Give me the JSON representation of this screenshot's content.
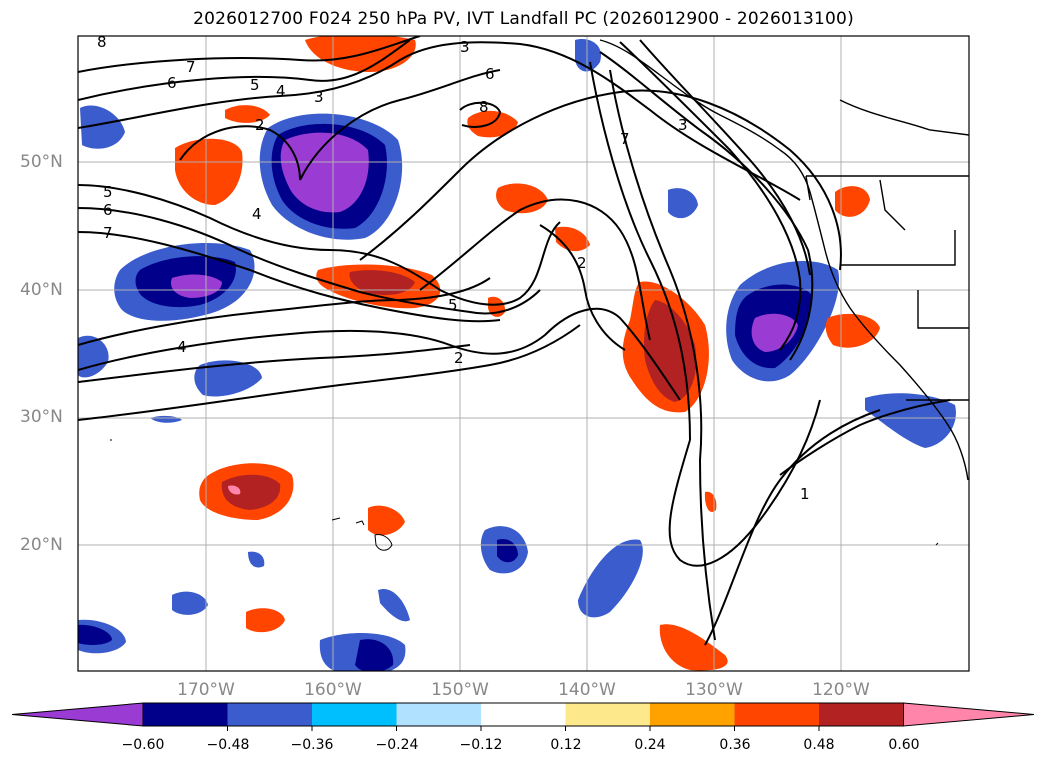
{
  "title": "2026012700 F024 250 hPa PV, IVT Landfall PC (2026012900 - 2026013100)",
  "lat_labels": [
    "50°N",
    "40°N",
    "30°N",
    "20°N"
  ],
  "lon_labels": [
    "170°W",
    "160°W",
    "150°W",
    "140°W",
    "130°W",
    "120°W"
  ],
  "colorbar": {
    "ticks": [
      "−0.60",
      "−0.48",
      "−0.36",
      "−0.24",
      "−0.12",
      "0.12",
      "0.24",
      "0.36",
      "0.48",
      "0.60"
    ],
    "colors": [
      "#9a3bd4",
      "#00008b",
      "#3a5ccc",
      "#00bfff",
      "#b0e2ff",
      "#ffffff",
      "#fde98c",
      "#ffa200",
      "#ff4500",
      "#b22222",
      "#ff85ab"
    ]
  },
  "contour_labels": [
    "8",
    "7",
    "6",
    "5",
    "4",
    "3",
    "2",
    "3",
    "6",
    "8",
    "7",
    "3",
    "5",
    "6",
    "7",
    "4",
    "2",
    "5",
    "4",
    "2",
    "1"
  ],
  "map": {
    "projection": "Lambert conformal (approx.)",
    "region": "North Pacific",
    "lat_range": [
      10,
      60
    ],
    "lon_range": [
      -180,
      -110
    ]
  }
}
